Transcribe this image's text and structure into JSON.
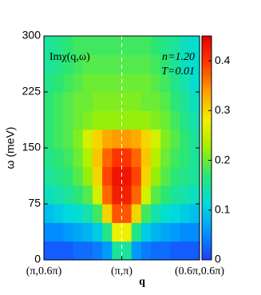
{
  "chart_data": {
    "type": "heatmap",
    "ylabel": "ω (meV)",
    "xlabel": "q",
    "annotations": [
      "Imχ(q,ω)",
      "n=1.20",
      "T=0.01"
    ],
    "xlim": [
      0,
      2
    ],
    "ylim": [
      0,
      300
    ],
    "xticks": [
      {
        "value": 0,
        "label": "(π,0.6π)"
      },
      {
        "value": 1,
        "label": "(π,π)"
      },
      {
        "value": 2,
        "label": "(0.6π,0.6π)"
      }
    ],
    "yticks": [
      0,
      75,
      150,
      225,
      300
    ],
    "xbins": [
      0,
      0.125,
      0.25,
      0.375,
      0.5,
      0.625,
      0.75,
      0.875,
      1,
      1.125,
      1.25,
      1.375,
      1.5,
      1.625,
      1.75,
      1.875,
      2
    ],
    "ybins": [
      0,
      25,
      50,
      75,
      100,
      125,
      150,
      175,
      200,
      225,
      250,
      275,
      300
    ],
    "z": [
      [
        0.02,
        0.02,
        0.02,
        0.03,
        0.03,
        0.04,
        0.06,
        0.15,
        0.15,
        0.06,
        0.04,
        0.03,
        0.03,
        0.02,
        0.02,
        0.02
      ],
      [
        0.05,
        0.05,
        0.06,
        0.07,
        0.08,
        0.1,
        0.16,
        0.28,
        0.28,
        0.16,
        0.1,
        0.08,
        0.07,
        0.06,
        0.05,
        0.05
      ],
      [
        0.09,
        0.1,
        0.11,
        0.12,
        0.14,
        0.18,
        0.3,
        0.38,
        0.38,
        0.3,
        0.18,
        0.14,
        0.12,
        0.11,
        0.1,
        0.09
      ],
      [
        0.13,
        0.14,
        0.15,
        0.17,
        0.19,
        0.26,
        0.37,
        0.42,
        0.42,
        0.37,
        0.26,
        0.19,
        0.17,
        0.15,
        0.14,
        0.13
      ],
      [
        0.15,
        0.16,
        0.17,
        0.19,
        0.22,
        0.3,
        0.39,
        0.43,
        0.43,
        0.39,
        0.3,
        0.22,
        0.19,
        0.17,
        0.16,
        0.15
      ],
      [
        0.16,
        0.17,
        0.18,
        0.2,
        0.24,
        0.31,
        0.37,
        0.4,
        0.4,
        0.37,
        0.31,
        0.24,
        0.2,
        0.18,
        0.17,
        0.15
      ],
      [
        0.17,
        0.18,
        0.19,
        0.21,
        0.26,
        0.3,
        0.33,
        0.34,
        0.34,
        0.33,
        0.3,
        0.26,
        0.21,
        0.19,
        0.17,
        0.15
      ],
      [
        0.17,
        0.18,
        0.19,
        0.2,
        0.21,
        0.22,
        0.22,
        0.22,
        0.22,
        0.22,
        0.22,
        0.21,
        0.2,
        0.18,
        0.16,
        0.14
      ],
      [
        0.17,
        0.18,
        0.19,
        0.2,
        0.2,
        0.21,
        0.21,
        0.21,
        0.21,
        0.21,
        0.2,
        0.2,
        0.19,
        0.17,
        0.15,
        0.13
      ],
      [
        0.16,
        0.17,
        0.18,
        0.19,
        0.2,
        0.2,
        0.2,
        0.2,
        0.2,
        0.2,
        0.2,
        0.19,
        0.18,
        0.16,
        0.14,
        0.12
      ],
      [
        0.15,
        0.16,
        0.17,
        0.18,
        0.19,
        0.19,
        0.19,
        0.19,
        0.19,
        0.19,
        0.19,
        0.18,
        0.17,
        0.15,
        0.13,
        0.12
      ],
      [
        0.15,
        0.16,
        0.17,
        0.18,
        0.18,
        0.18,
        0.18,
        0.18,
        0.18,
        0.18,
        0.18,
        0.17,
        0.16,
        0.15,
        0.13,
        0.12
      ]
    ],
    "zlim": [
      0,
      0.45
    ],
    "zticks": [
      0,
      0.1,
      0.2,
      0.3,
      0.4
    ],
    "colormap": [
      "#1e3cff",
      "#0096ff",
      "#00dcdc",
      "#28e678",
      "#a0f000",
      "#f0f000",
      "#ffa000",
      "#ff3c00",
      "#e60000"
    ],
    "marker_line_color": "#ffffff"
  }
}
